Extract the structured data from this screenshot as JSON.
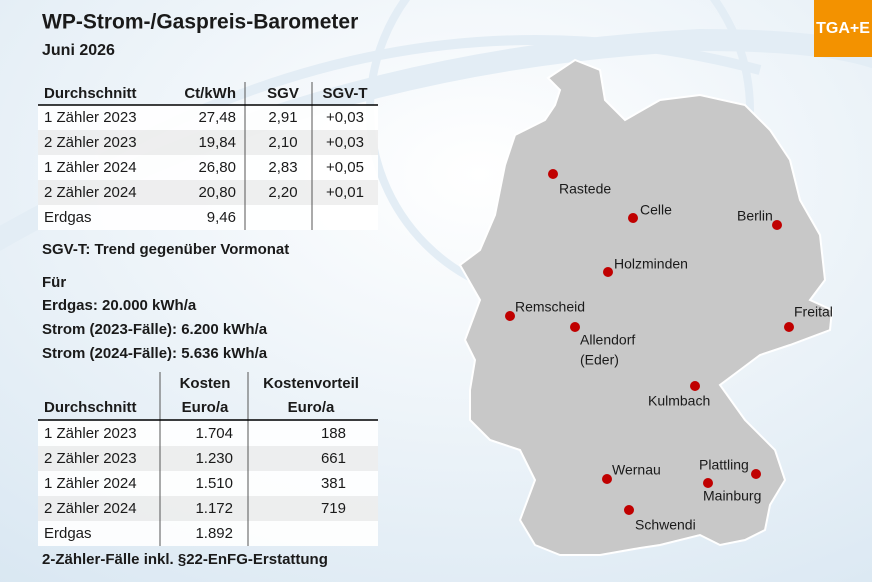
{
  "header": {
    "title": "WP-Strom-/Gaspreis-Barometer",
    "subtitle": "Juni 2026"
  },
  "logo": "TGA+E",
  "table1": {
    "columns": [
      "Durchschnitt",
      "Ct/kWh",
      "SGV",
      "SGV-T"
    ],
    "rows": [
      [
        "1 Zähler 2023",
        "27,48",
        "2,91",
        "+0,03"
      ],
      [
        "2 Zähler 2023",
        "19,84",
        "2,10",
        "+0,03"
      ],
      [
        "1 Zähler 2024",
        "26,80",
        "2,83",
        "+0,05"
      ],
      [
        "2 Zähler 2024",
        "20,80",
        "2,20",
        "+0,01"
      ],
      [
        "Erdgas",
        "9,46"
      ]
    ]
  },
  "note": "SGV-T: Trend gegenüber Vormonat",
  "assumptions": {
    "heading": "Für",
    "lines": [
      "Erdgas: 20.000 kWh/a",
      "Strom (2023-Fälle): 6.200 kWh/a",
      "Strom (2024-Fälle): 5.636 kWh/a"
    ]
  },
  "table2": {
    "columns": [
      [
        "Durchschnitt"
      ],
      [
        "Kosten",
        "Euro/a"
      ],
      [
        "Kostenvorteil",
        "Euro/a"
      ]
    ],
    "rows": [
      [
        "1 Zähler 2023",
        "1.704",
        "188"
      ],
      [
        "2 Zähler 2023",
        "1.230",
        "661"
      ],
      [
        "1 Zähler 2024",
        "1.510",
        "381"
      ],
      [
        "2 Zähler 2024",
        "1.172",
        "719"
      ],
      [
        "Erdgas",
        "1.892"
      ]
    ]
  },
  "footnote": "2-Zähler-Fälle inkl. §22-EnFG-Erstattung",
  "map": {
    "cities": [
      {
        "lines": [
          "Rastede"
        ]
      },
      {
        "lines": [
          "Celle"
        ]
      },
      {
        "lines": [
          "Berlin"
        ]
      },
      {
        "lines": [
          "Holzminden"
        ]
      },
      {
        "lines": [
          "Remscheid"
        ]
      },
      {
        "lines": [
          "Allendorf",
          "(Eder)"
        ]
      },
      {
        "lines": [
          "Freital"
        ]
      },
      {
        "lines": [
          "Kulmbach"
        ]
      },
      {
        "lines": [
          "Plattling"
        ]
      },
      {
        "lines": [
          "Mainburg"
        ]
      },
      {
        "lines": [
          "Wernau"
        ]
      },
      {
        "lines": [
          "Schwendi"
        ]
      }
    ]
  }
}
